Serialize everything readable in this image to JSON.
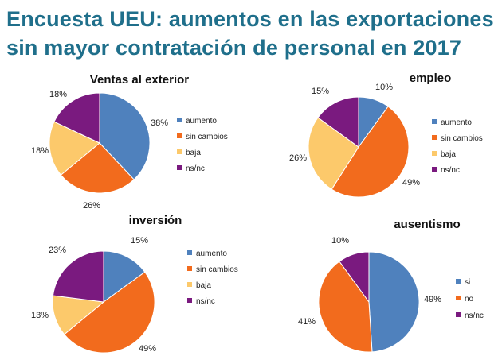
{
  "title": {
    "line1": "Encuesta UEU: aumentos en las exportaciones",
    "line2": "sin mayor contratación de personal en 2017"
  },
  "colors": {
    "aumento": "#4f81bd",
    "sin_cambios": "#f26b1d",
    "baja": "#fcc96b",
    "nsnc": "#7a1a7f",
    "title": "#1f6f8b"
  },
  "chart_data": [
    {
      "type": "pie",
      "title": "Ventas al exterior",
      "categories": [
        "aumento",
        "sin cambios",
        "baja",
        "ns/nc"
      ],
      "values": [
        38,
        26,
        18,
        18
      ],
      "labels": [
        "38%",
        "26%",
        "18%",
        "18%"
      ],
      "legend_position": "right"
    },
    {
      "type": "pie",
      "title": "empleo",
      "categories": [
        "aumento",
        "sin cambios",
        "baja",
        "ns/nc"
      ],
      "values": [
        10,
        49,
        26,
        15
      ],
      "labels": [
        "10%",
        "49%",
        "26%",
        "15%"
      ],
      "legend_position": "right"
    },
    {
      "type": "pie",
      "title": "inversión",
      "categories": [
        "aumento",
        "sin cambios",
        "baja",
        "ns/nc"
      ],
      "values": [
        15,
        49,
        13,
        23
      ],
      "labels": [
        "15%",
        "49%",
        "13%",
        "23%"
      ],
      "legend_position": "right"
    },
    {
      "type": "pie",
      "title": "ausentismo",
      "categories": [
        "si",
        "no",
        "ns/nc"
      ],
      "values": [
        49,
        41,
        10
      ],
      "labels": [
        "49%",
        "41%",
        "10%"
      ],
      "legend_position": "right"
    }
  ]
}
